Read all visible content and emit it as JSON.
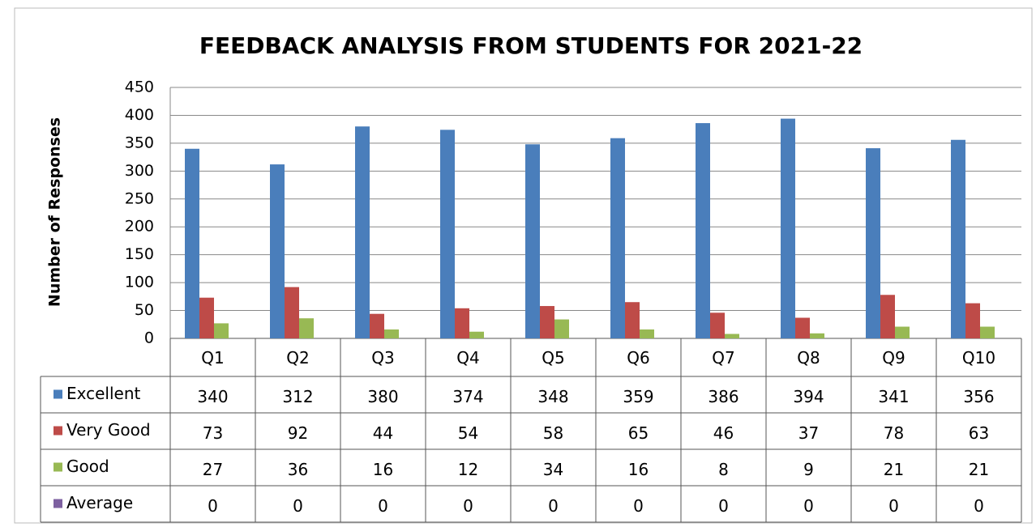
{
  "chart_data": {
    "type": "bar",
    "title": "FEEDBACK ANALYSIS FROM STUDENTS FOR 2021-22",
    "ylabel": "Number of Responses",
    "categories": [
      "Q1",
      "Q2",
      "Q3",
      "Q4",
      "Q5",
      "Q6",
      "Q7",
      "Q8",
      "Q9",
      "Q10"
    ],
    "series": [
      {
        "name": "Excellent",
        "color": "#4a7ebb",
        "values": [
          340,
          312,
          380,
          374,
          348,
          359,
          386,
          394,
          341,
          356
        ]
      },
      {
        "name": "Very Good",
        "color": "#be4b48",
        "values": [
          73,
          92,
          44,
          54,
          58,
          65,
          46,
          37,
          78,
          63
        ]
      },
      {
        "name": "Good",
        "color": "#98b954",
        "values": [
          27,
          36,
          16,
          12,
          34,
          16,
          8,
          9,
          21,
          21
        ]
      },
      {
        "name": "Average",
        "color": "#7d60a0",
        "values": [
          0,
          0,
          0,
          0,
          0,
          0,
          0,
          0,
          0,
          0
        ]
      }
    ],
    "ylim": [
      0,
      450
    ],
    "yticks": [
      0,
      50,
      100,
      150,
      200,
      250,
      300,
      350,
      400,
      450
    ],
    "grid": true
  }
}
